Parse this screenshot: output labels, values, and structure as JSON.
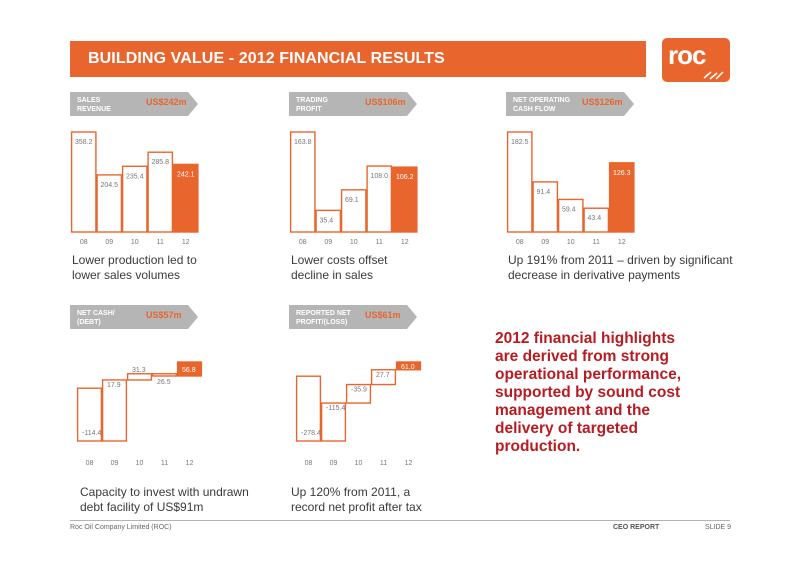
{
  "title": "BUILDING VALUE - 2012 FINANCIAL RESULTS",
  "logo_text": "roc",
  "colors": {
    "accent": "#e8662d",
    "label_grey": "#b5b5b5",
    "highlight_red": "#b81c22"
  },
  "chart_data": [
    {
      "type": "bar",
      "label_lines": [
        "SALES",
        "REVENUE"
      ],
      "value_label": "US$242m",
      "categories": [
        "08",
        "09",
        "10",
        "11",
        "12"
      ],
      "values": [
        358.2,
        204.5,
        235.4,
        285.8,
        242.1
      ],
      "value_labels": [
        "358.2",
        "204.5",
        "235.4",
        "285.8",
        "242.1"
      ],
      "ylim": [
        0,
        358.2
      ],
      "caption_lines": [
        "Lower production led to",
        "lower sales volumes"
      ]
    },
    {
      "type": "bar",
      "label_lines": [
        "TRADING",
        "PROFIT"
      ],
      "value_label": "US$106m",
      "categories": [
        "08",
        "09",
        "10",
        "11",
        "12"
      ],
      "values": [
        163.8,
        35.4,
        69.1,
        108.0,
        106.2
      ],
      "value_labels": [
        "163.8",
        "35.4",
        "69.1",
        "108.0",
        "106.2"
      ],
      "ylim": [
        0,
        163.8
      ],
      "caption_lines": [
        "Lower costs offset",
        "decline in sales"
      ]
    },
    {
      "type": "bar",
      "label_lines": [
        "NET OPERATING",
        "CASH FLOW"
      ],
      "value_label": "US$126m",
      "categories": [
        "08",
        "09",
        "10",
        "11",
        "12"
      ],
      "values": [
        182.5,
        91.4,
        59.4,
        43.4,
        126.3
      ],
      "value_labels": [
        "182.5",
        "91.4",
        "59.4",
        "43.4",
        "126.3"
      ],
      "ylim": [
        0,
        182.5
      ],
      "caption_lines": [
        "Up 191% from 2011 – driven by significant",
        "decrease in derivative payments"
      ]
    },
    {
      "type": "waterfall",
      "label_lines": [
        "NET CASH/",
        "(DEBT)"
      ],
      "value_label": "US$57m",
      "categories": [
        "08",
        "09",
        "10",
        "11",
        "12"
      ],
      "values": [
        -114.4,
        17.9,
        31.3,
        26.5,
        56.8
      ],
      "value_labels": [
        "-114.4",
        "17.9",
        "31.3",
        "26.5",
        "56.8"
      ],
      "ylim": [
        -114.4,
        56.8
      ],
      "caption_lines": [
        "Capacity to invest with undrawn",
        "debt facility of US$91m"
      ]
    },
    {
      "type": "waterfall",
      "label_lines": [
        "REPORTED NET",
        "PROFIT/(LOSS)"
      ],
      "value_label": "US$61m",
      "categories": [
        "08",
        "09",
        "10",
        "11",
        "12"
      ],
      "values": [
        -278.4,
        -115.4,
        -35.9,
        27.7,
        61.0
      ],
      "value_labels": [
        "-278.4",
        "-115.4",
        "-35.9",
        "27.7",
        "61.0"
      ],
      "ylim": [
        -278.4,
        61.0
      ],
      "caption_lines": [
        "Up 120% from 2011, a",
        "record net profit after tax"
      ]
    }
  ],
  "highlight_lines": [
    "2012 financial highlights",
    "are derived from strong",
    "operational performance,",
    "supported by sound cost",
    "management and the",
    "delivery of targeted",
    "production."
  ],
  "footer": {
    "left": "Roc Oil Company Limited (ROC)",
    "center": "CEO REPORT",
    "right": "SLIDE 9"
  }
}
